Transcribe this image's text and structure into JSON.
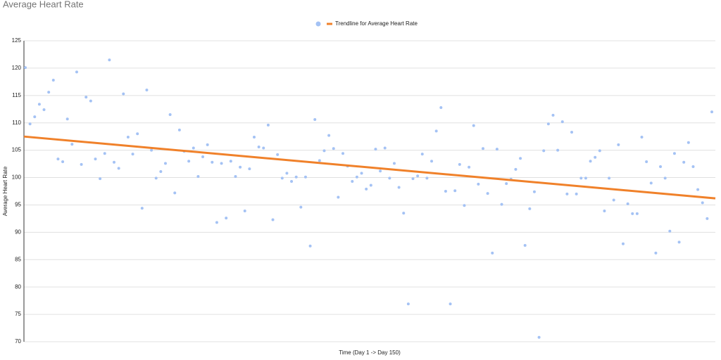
{
  "chart_data": {
    "type": "scatter",
    "title": "Average Heart Rate",
    "xlabel": "Time (Day 1 -> Day 150)",
    "ylabel": "Average Heart Rate",
    "ylim": [
      70,
      125
    ],
    "yticks": [
      70,
      75,
      80,
      85,
      90,
      95,
      100,
      105,
      110,
      115,
      120,
      125
    ],
    "grid": true,
    "color": "#a4c2f4",
    "values": [
      120.1,
      109.8,
      111.1,
      113.4,
      112.4,
      115.6,
      117.8,
      103.4,
      102.9,
      110.7,
      106.1,
      119.3,
      102.4,
      114.7,
      114.0,
      103.4,
      99.8,
      104.4,
      121.5,
      102.8,
      101.7,
      115.3,
      107.4,
      104.3,
      108.0,
      94.4,
      116.0,
      105.0,
      99.9,
      101.1,
      102.6,
      111.5,
      97.2,
      108.7,
      104.8,
      103.0,
      105.4,
      100.2,
      103.8,
      106.0,
      102.8,
      91.8,
      102.6,
      92.6,
      103.0,
      100.2,
      101.9,
      93.9,
      101.6,
      107.4,
      105.6,
      105.4,
      109.6,
      92.3,
      104.2,
      99.9,
      100.8,
      99.3,
      100.1,
      94.6,
      100.1,
      87.5,
      110.6,
      103.1,
      104.9,
      107.7,
      105.3,
      96.4,
      104.4,
      102.1,
      99.3,
      100.1,
      100.8,
      97.9,
      98.6,
      105.2,
      101.2,
      105.4,
      99.9,
      102.6,
      98.2,
      93.5,
      76.9,
      99.8,
      100.3,
      104.3,
      99.9,
      103.0,
      108.5,
      112.8,
      97.5,
      76.9,
      97.6,
      102.4,
      94.9,
      101.9,
      109.5,
      98.8,
      105.3,
      97.1,
      86.2,
      105.2,
      95.1,
      98.9,
      99.7,
      101.5,
      103.5,
      87.6,
      94.3,
      97.4,
      70.8,
      104.9,
      109.8,
      111.4,
      105.0,
      110.2,
      97.0,
      108.3,
      97.0,
      99.9,
      99.9,
      103.0,
      103.7,
      104.9,
      93.9,
      99.9,
      95.9,
      106.0,
      87.9,
      95.2,
      93.4,
      93.4,
      107.4,
      102.9,
      99.0,
      86.2,
      102.0,
      99.9,
      90.2,
      104.4,
      88.2,
      102.8,
      106.4,
      102.0,
      97.8,
      95.4,
      92.5,
      112.0
    ],
    "trendline": {
      "name": "Trendline for Average Heart Rate",
      "color": "#f0812a",
      "values": [
        107.5,
        96.2
      ]
    }
  }
}
